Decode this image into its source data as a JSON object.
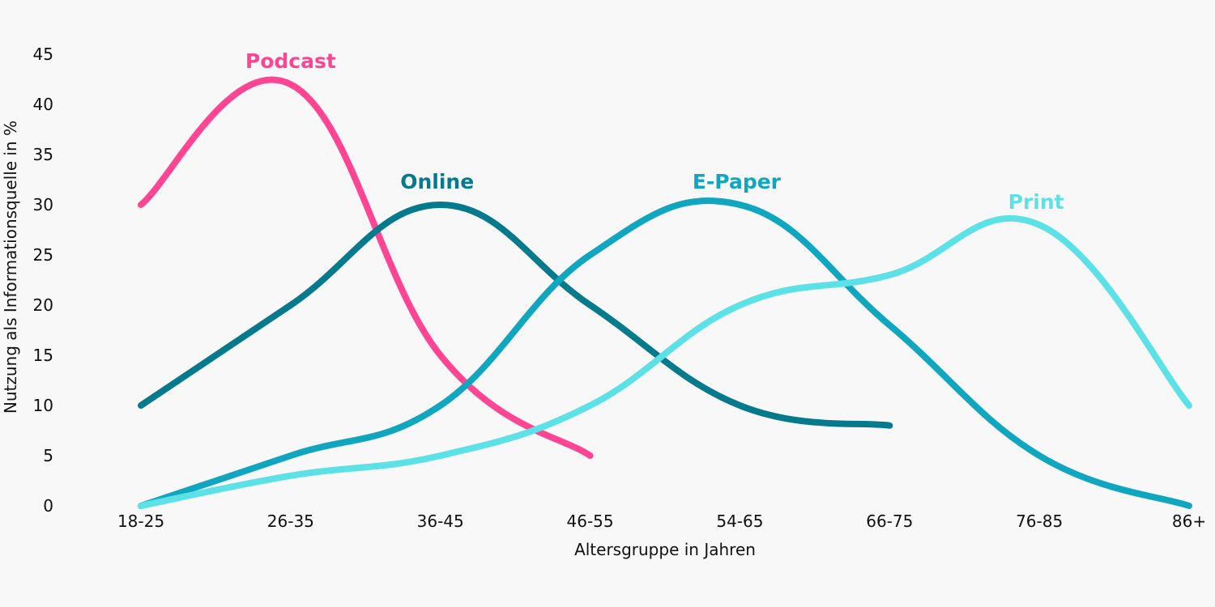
{
  "chart_data": {
    "type": "line",
    "title": "",
    "xlabel": "Altersgruppe in Jahren",
    "ylabel": "Nutzung als Informationsquelle in %",
    "categories": [
      "18-25",
      "26-35",
      "36-45",
      "46-55",
      "54-65",
      "66-75",
      "76-85",
      "86+"
    ],
    "ylim": [
      0,
      45
    ],
    "yticks": [
      0,
      5,
      10,
      15,
      20,
      25,
      30,
      35,
      40,
      45
    ],
    "grid": false,
    "legend": "inline labels at series peaks",
    "series": [
      {
        "name": "Podcast",
        "color": "#ff4593",
        "values": [
          30,
          42,
          15,
          5,
          null,
          null,
          null,
          null
        ]
      },
      {
        "name": "Online",
        "color": "#047a8c",
        "values": [
          10,
          20,
          30,
          20,
          10,
          8,
          null,
          null
        ]
      },
      {
        "name": "E-Paper",
        "color": "#10a6bf",
        "values": [
          0,
          5,
          10,
          25,
          30,
          18,
          5,
          0
        ]
      },
      {
        "name": "Print",
        "color": "#5ce1e6",
        "values": [
          0,
          3,
          5,
          10,
          20,
          23,
          28,
          10
        ]
      }
    ]
  }
}
